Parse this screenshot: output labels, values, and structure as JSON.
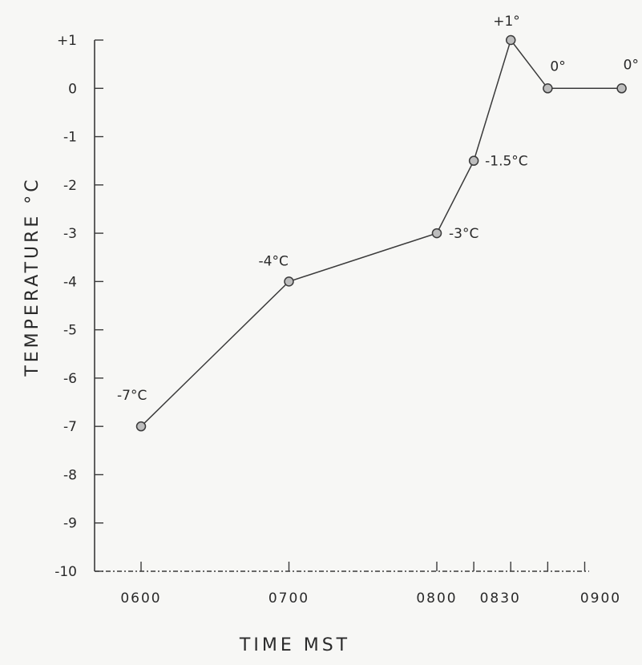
{
  "chart_data": {
    "type": "line",
    "title": "",
    "xlabel": "TIME MST",
    "ylabel": "TEMPERATURE °C",
    "ylim": [
      -10,
      1
    ],
    "xlim": [
      "0600",
      "0900"
    ],
    "grid": false,
    "legend": "none",
    "y_ticks": [
      "+1",
      "0",
      "-1",
      "-2",
      "-3",
      "-4",
      "-5",
      "-6",
      "-7",
      "-8",
      "-9",
      "-10"
    ],
    "x_ticks": [
      "0600",
      "0700",
      "0800",
      "0830",
      "0900"
    ],
    "series": [
      {
        "x": [
          "06:00",
          "07:00",
          "08:00",
          "08:15",
          "08:30",
          "08:45",
          "09:15"
        ],
        "y": [
          -7,
          -4,
          -3,
          -1.5,
          1,
          0,
          0
        ]
      }
    ],
    "data_labels": [
      "-7°C",
      "-4°C",
      "-3°C",
      "-1.5°C",
      "+1°",
      "0°",
      "0°"
    ],
    "colors": {
      "line": "#3a3a3a",
      "marker_fill": "#bdbdbd",
      "text": "#2a2a2a",
      "background": "#f7f7f5"
    }
  }
}
